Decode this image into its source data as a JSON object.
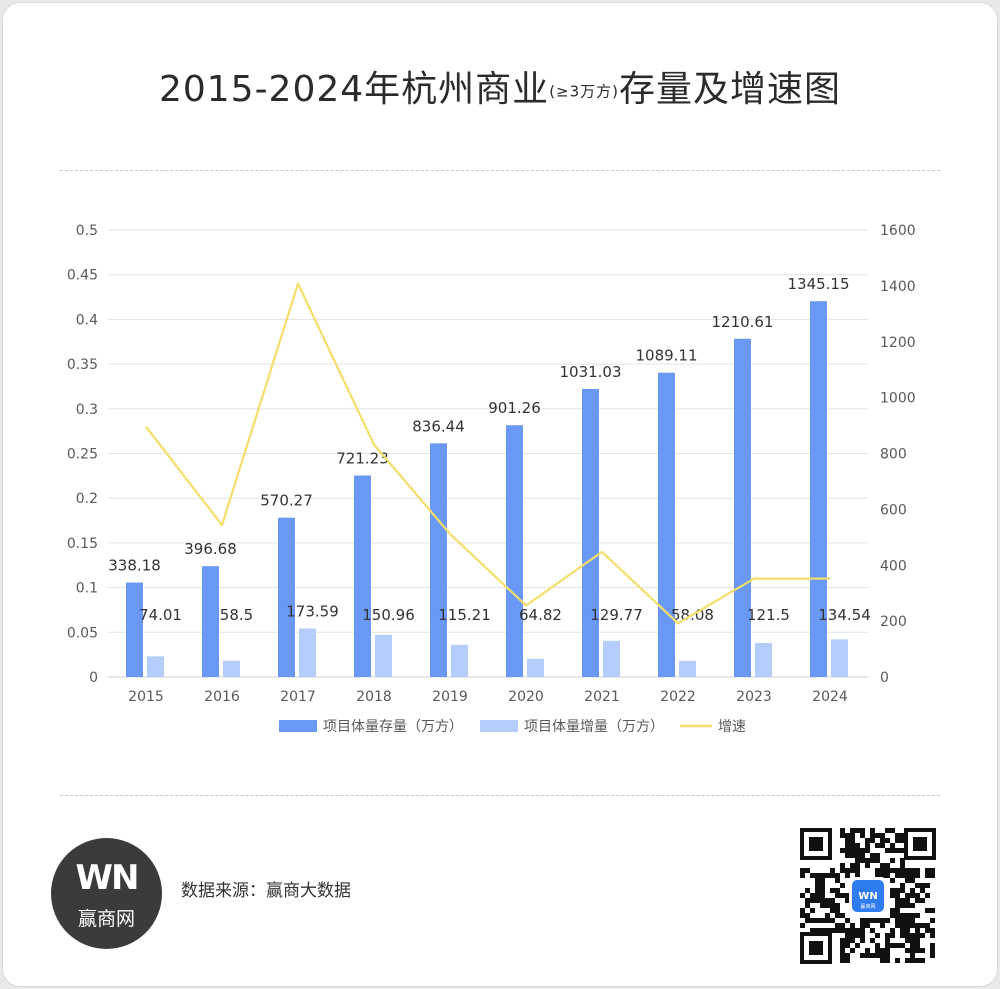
{
  "title": {
    "main_before": "2015-2024年杭州商业",
    "qualifier": "(≥3万方)",
    "main_after": "存量及增速图"
  },
  "source": "数据来源：赢商大数据",
  "logo": {
    "mark": "WN",
    "name": "赢商网",
    "icon": "winshang-logo"
  },
  "qr": {
    "icon": "qr-code",
    "center_badge": "赢商网"
  },
  "colors": {
    "stock": "#6a98f5",
    "increment": "#b4cdfb",
    "growth": "#f5dd6a",
    "grid": "#e3e3e3",
    "text": "#595959"
  },
  "chart_data": {
    "type": "bar",
    "categories": [
      "2015",
      "2016",
      "2017",
      "2018",
      "2019",
      "2020",
      "2021",
      "2022",
      "2023",
      "2024"
    ],
    "series": [
      {
        "name": "项目体量存量（万方）",
        "kind": "bar",
        "axis": "right",
        "values": [
          338.18,
          396.68,
          570.27,
          721.23,
          836.44,
          901.26,
          1031.03,
          1089.11,
          1210.61,
          1345.15
        ],
        "labels": [
          "338.18",
          "396.68",
          "570.27",
          "721.23",
          "836.44",
          "901.26",
          "1031.03",
          "1089.11",
          "1210.61",
          "1345.15"
        ]
      },
      {
        "name": "项目体量增量（万方）",
        "kind": "bar",
        "axis": "right",
        "values": [
          74.01,
          58.5,
          173.59,
          150.96,
          115.21,
          64.82,
          129.77,
          58.08,
          121.5,
          134.54
        ],
        "labels": [
          "74.01",
          "58.5",
          "173.59",
          "150.96",
          "115.21",
          "64.82",
          "129.77",
          "58.08",
          "121.5",
          "134.54"
        ]
      },
      {
        "name": "增速",
        "kind": "line",
        "axis": "left",
        "values": [
          0.28,
          0.17,
          0.44,
          0.26,
          0.16,
          0.08,
          0.14,
          0.06,
          0.11,
          0.11
        ]
      }
    ],
    "left_axis": {
      "ylim": [
        0,
        0.5
      ],
      "ticks": [
        "0",
        "0.05",
        "0.1",
        "0.15",
        "0.2",
        "0.25",
        "0.3",
        "0.35",
        "0.4",
        "0.45",
        "0.5"
      ]
    },
    "right_axis": {
      "ylim": [
        0,
        1600
      ],
      "ticks": [
        "0",
        "200",
        "400",
        "600",
        "800",
        "1000",
        "1200",
        "1400",
        "1600"
      ]
    },
    "grid": true,
    "legend_position": "bottom"
  }
}
